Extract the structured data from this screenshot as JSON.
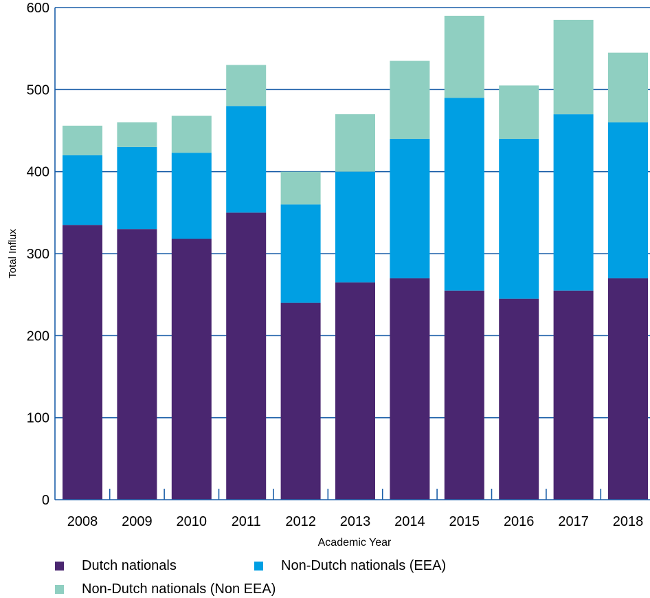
{
  "chart_data": {
    "type": "bar",
    "stacked": true,
    "xlabel": "Academic Year",
    "ylabel": "Total Influx",
    "ylim": [
      0,
      600
    ],
    "yticks": [
      0,
      100,
      200,
      300,
      400,
      500,
      600
    ],
    "grid": true,
    "legend_position": "bottom",
    "categories": [
      "2008",
      "2009",
      "2010",
      "2011",
      "2012",
      "2013",
      "2014",
      "2015",
      "2016",
      "2017",
      "2018"
    ],
    "series": [
      {
        "name": "Dutch nationals",
        "color": "#4a2670",
        "values": [
          335,
          330,
          318,
          350,
          240,
          265,
          270,
          255,
          245,
          255,
          270
        ]
      },
      {
        "name": "Non-Dutch nationals (EEA)",
        "color": "#009fe3",
        "values": [
          85,
          100,
          105,
          130,
          120,
          135,
          170,
          235,
          195,
          215,
          190
        ]
      },
      {
        "name": "Non-Dutch nationals (Non EEA)",
        "color": "#8fcfc1",
        "values": [
          36,
          30,
          45,
          50,
          40,
          70,
          95,
          100,
          65,
          115,
          85
        ]
      }
    ],
    "axis_color": "#1a5ea8"
  }
}
